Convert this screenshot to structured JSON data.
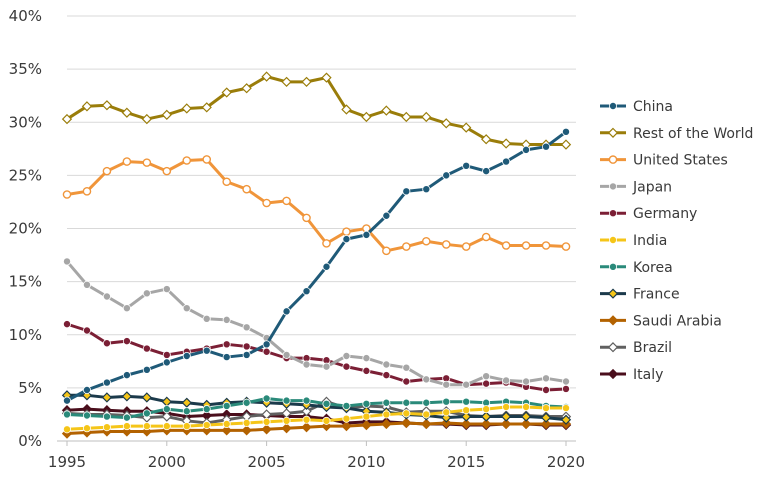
{
  "chart_data": {
    "type": "line",
    "title": "",
    "xlabel": "",
    "ylabel": "",
    "x": [
      1995,
      1996,
      1997,
      1998,
      1999,
      2000,
      2001,
      2002,
      2003,
      2004,
      2005,
      2006,
      2007,
      2008,
      2009,
      2010,
      2011,
      2012,
      2013,
      2014,
      2015,
      2016,
      2017,
      2018,
      2019,
      2020
    ],
    "xlim": [
      1995,
      2020
    ],
    "ylim": [
      0,
      40
    ],
    "xticks": [
      1995,
      2000,
      2005,
      2010,
      2015,
      2020
    ],
    "xtick_labels": [
      "1995",
      "2000",
      "2005",
      "2010",
      "2015",
      "2020"
    ],
    "yticks": [
      0,
      5,
      10,
      15,
      20,
      25,
      30,
      35,
      40
    ],
    "ytick_labels": [
      "0%",
      "5%",
      "10%",
      "15%",
      "20%",
      "25%",
      "30%",
      "35%",
      "40%"
    ],
    "grid": "horizontal",
    "legend_position": "right",
    "series": [
      {
        "name": "China",
        "color": "#1f5a78",
        "marker": "circle-filled",
        "values": [
          3.8,
          4.8,
          5.5,
          6.2,
          6.7,
          7.4,
          8.0,
          8.5,
          7.9,
          8.1,
          9.1,
          12.2,
          14.1,
          16.4,
          19.0,
          19.4,
          21.2,
          23.5,
          23.7,
          25.0,
          25.9,
          25.4,
          26.3,
          27.4,
          27.7,
          29.1
        ]
      },
      {
        "name": "Rest of the World",
        "color": "#9a7d0a",
        "marker": "diamond-open",
        "values": [
          30.3,
          31.5,
          31.6,
          30.9,
          30.3,
          30.7,
          31.3,
          31.4,
          32.8,
          33.2,
          34.3,
          33.8,
          33.8,
          34.2,
          31.2,
          30.5,
          31.1,
          30.5,
          30.5,
          29.9,
          29.5,
          28.4,
          28.0,
          27.9,
          27.9,
          27.9
        ]
      },
      {
        "name": "United States",
        "color": "#f0953a",
        "marker": "circle-open",
        "values": [
          23.2,
          23.5,
          25.4,
          26.3,
          26.2,
          25.4,
          26.4,
          26.5,
          24.4,
          23.7,
          22.4,
          22.6,
          21.0,
          18.6,
          19.7,
          20.0,
          17.9,
          18.3,
          18.8,
          18.5,
          18.3,
          19.2,
          18.4,
          18.4,
          18.4,
          18.3
        ]
      },
      {
        "name": "Japan",
        "color": "#a6a6a6",
        "marker": "circle-filled",
        "values": [
          16.9,
          14.7,
          13.6,
          12.5,
          13.9,
          14.3,
          12.5,
          11.5,
          11.4,
          10.7,
          9.7,
          8.1,
          7.2,
          7.0,
          8.0,
          7.8,
          7.2,
          6.9,
          5.8,
          5.3,
          5.3,
          6.1,
          5.7,
          5.6,
          5.9,
          5.6
        ]
      },
      {
        "name": "Germany",
        "color": "#7b1f35",
        "marker": "circle-filled",
        "values": [
          11.0,
          10.4,
          9.2,
          9.4,
          8.7,
          8.1,
          8.4,
          8.7,
          9.1,
          8.9,
          8.4,
          7.8,
          7.8,
          7.6,
          7.0,
          6.6,
          6.2,
          5.6,
          5.8,
          5.9,
          5.3,
          5.4,
          5.5,
          5.1,
          4.8,
          4.9
        ]
      },
      {
        "name": "India",
        "color": "#f5c518",
        "marker": "circle-filled",
        "values": [
          1.1,
          1.2,
          1.3,
          1.4,
          1.4,
          1.4,
          1.4,
          1.5,
          1.6,
          1.7,
          1.8,
          1.9,
          2.0,
          1.9,
          2.1,
          2.3,
          2.5,
          2.6,
          2.5,
          2.7,
          2.9,
          3.0,
          3.2,
          3.2,
          3.1,
          3.1
        ]
      },
      {
        "name": "Korea",
        "color": "#2a8a7a",
        "marker": "circle-filled",
        "values": [
          2.5,
          2.4,
          2.3,
          2.2,
          2.6,
          3.0,
          2.8,
          3.0,
          3.3,
          3.6,
          4.0,
          3.8,
          3.8,
          3.5,
          3.3,
          3.5,
          3.6,
          3.6,
          3.6,
          3.7,
          3.7,
          3.6,
          3.7,
          3.6,
          3.3,
          3.2
        ]
      },
      {
        "name": "France",
        "color": "#1b3a4b",
        "marker": "diamond-filled-yellow",
        "values": [
          4.3,
          4.3,
          4.1,
          4.2,
          4.1,
          3.7,
          3.6,
          3.4,
          3.6,
          3.7,
          3.6,
          3.5,
          3.4,
          3.2,
          3.1,
          2.8,
          2.7,
          2.5,
          2.4,
          2.2,
          2.3,
          2.3,
          2.3,
          2.3,
          2.2,
          2.0
        ]
      },
      {
        "name": "Saudi Arabia",
        "color": "#b36200",
        "marker": "diamond-filled",
        "values": [
          0.7,
          0.8,
          0.9,
          0.9,
          0.9,
          1.0,
          1.0,
          1.0,
          1.0,
          1.0,
          1.1,
          1.2,
          1.3,
          1.4,
          1.4,
          1.5,
          1.6,
          1.7,
          1.6,
          1.7,
          1.6,
          1.6,
          1.6,
          1.6,
          1.6,
          1.6
        ]
      },
      {
        "name": "Brazil",
        "color": "#606060",
        "marker": "diamond-open",
        "values": [
          2.6,
          2.5,
          2.5,
          2.4,
          2.2,
          2.3,
          1.9,
          1.7,
          2.0,
          2.3,
          2.5,
          2.6,
          2.8,
          3.7,
          3.1,
          3.3,
          3.2,
          2.7,
          2.8,
          2.8,
          2.4,
          2.3,
          2.4,
          2.4,
          2.3,
          2.3
        ]
      },
      {
        "name": "Italy",
        "color": "#4a0e1c",
        "marker": "diamond-filled",
        "values": [
          2.9,
          3.0,
          2.9,
          2.8,
          2.8,
          2.6,
          2.3,
          2.4,
          2.5,
          2.5,
          2.4,
          2.3,
          2.3,
          2.1,
          1.7,
          1.8,
          1.8,
          1.7,
          1.6,
          1.6,
          1.5,
          1.5,
          1.6,
          1.6,
          1.5,
          1.5
        ]
      }
    ]
  }
}
